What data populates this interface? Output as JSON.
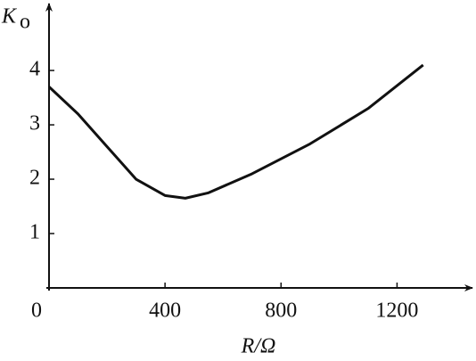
{
  "chart_data": {
    "type": "line",
    "y_label": {
      "symbol": "K",
      "subscript": "o"
    },
    "x_label": "R/Ω",
    "x": [
      0,
      100,
      200,
      300,
      400,
      470,
      550,
      700,
      900,
      1100,
      1290
    ],
    "series": [
      {
        "color": "#111111",
        "values": [
          3.7,
          3.2,
          2.6,
          2.0,
          1.7,
          1.65,
          1.75,
          2.1,
          2.65,
          3.3,
          4.1
        ]
      }
    ],
    "xlim": [
      0,
      1460
    ],
    "ylim": [
      0,
      5.1
    ],
    "xticks": [
      0,
      400,
      800,
      1200
    ],
    "yticks": [
      1,
      2,
      3,
      4
    ]
  }
}
